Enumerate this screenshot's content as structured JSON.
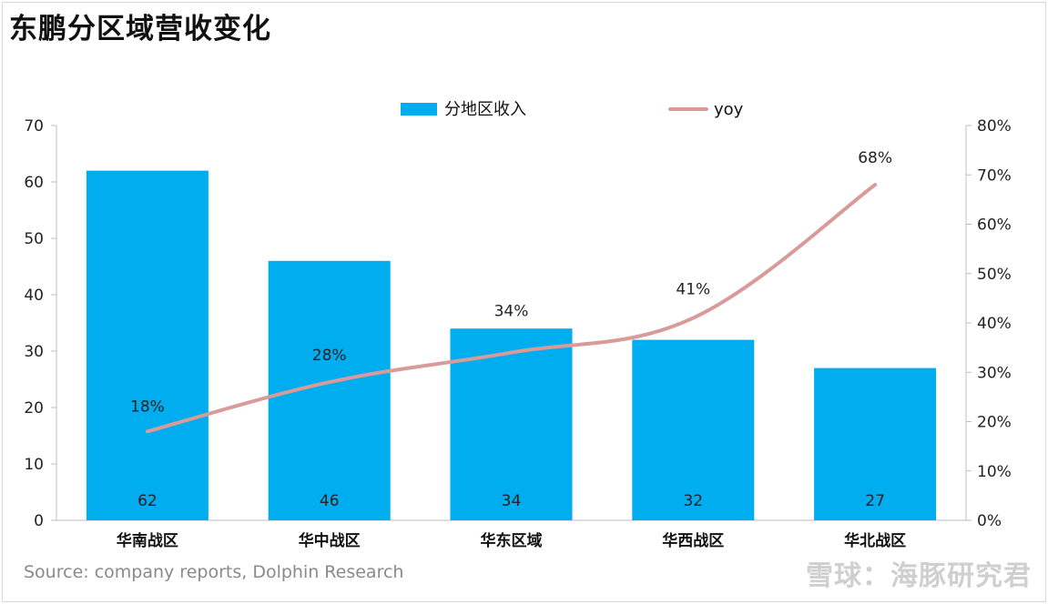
{
  "title": "东鹏分区域营收变化",
  "source": "Source: company reports, Dolphin Research",
  "watermark": "雪球：海豚研究君",
  "chart_data": {
    "type": "bar",
    "categories": [
      "华南战区",
      "华中战区",
      "华东区域",
      "华西战区",
      "华北战区"
    ],
    "series": [
      {
        "name": "分地区收入",
        "type": "bar",
        "axis": "left",
        "color": "#00aeef",
        "values": [
          62,
          46,
          34,
          32,
          27
        ],
        "labels": [
          "62",
          "46",
          "34",
          "32",
          "27"
        ]
      },
      {
        "name": "yoy",
        "type": "line",
        "axis": "right",
        "color": "#d99a9a",
        "values": [
          18,
          28,
          34,
          41,
          68
        ],
        "labels": [
          "18%",
          "28%",
          "34%",
          "41%",
          "68%"
        ]
      }
    ],
    "y_left": {
      "ylim": [
        0,
        70
      ],
      "ticks": [
        "0",
        "10",
        "20",
        "30",
        "40",
        "50",
        "60",
        "70"
      ]
    },
    "y_right": {
      "ylim": [
        0,
        80
      ],
      "ticks": [
        "0%",
        "10%",
        "20%",
        "30%",
        "40%",
        "50%",
        "60%",
        "70%",
        "80%"
      ]
    },
    "legend_position": "top-center",
    "grid": false
  }
}
